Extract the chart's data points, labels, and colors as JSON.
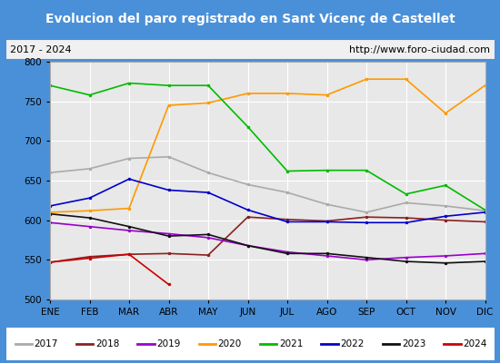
{
  "title": "Evolucion del paro registrado en Sant Vicenç de Castellet",
  "subtitle_left": "2017 - 2024",
  "subtitle_right": "http://www.foro-ciudad.com",
  "xlabel_ticks": [
    "ENE",
    "FEB",
    "MAR",
    "ABR",
    "MAY",
    "JUN",
    "JUL",
    "AGO",
    "SEP",
    "OCT",
    "NOV",
    "DIC"
  ],
  "ylim": [
    500,
    800
  ],
  "yticks": [
    500,
    550,
    600,
    650,
    700,
    750,
    800
  ],
  "title_bg": "#4a90d9",
  "title_color": "white",
  "subtitle_bg": "#f0f0f0",
  "plot_bg": "#e8e8e8",
  "grid_color": "white",
  "series": {
    "2017": {
      "color": "#aaaaaa",
      "data": [
        660,
        665,
        678,
        680,
        660,
        645,
        635,
        620,
        610,
        622,
        618,
        612
      ]
    },
    "2018": {
      "color": "#8b2020",
      "data": [
        547,
        554,
        557,
        558,
        556,
        604,
        601,
        599,
        604,
        603,
        600,
        598
      ]
    },
    "2019": {
      "color": "#9900cc",
      "data": [
        597,
        592,
        587,
        583,
        578,
        568,
        560,
        555,
        550,
        553,
        555,
        558
      ]
    },
    "2020": {
      "color": "#ff9900",
      "data": [
        610,
        612,
        615,
        745,
        748,
        760,
        760,
        758,
        778,
        778,
        735,
        770
      ]
    },
    "2021": {
      "color": "#00bb00",
      "data": [
        770,
        758,
        773,
        770,
        770,
        718,
        662,
        663,
        663,
        633,
        644,
        613
      ]
    },
    "2022": {
      "color": "#0000cc",
      "data": [
        618,
        628,
        652,
        638,
        635,
        613,
        598,
        598,
        597,
        597,
        605,
        610
      ]
    },
    "2023": {
      "color": "#111111",
      "data": [
        608,
        603,
        592,
        580,
        582,
        568,
        558,
        558,
        553,
        548,
        546,
        548
      ]
    },
    "2024": {
      "color": "#cc0000",
      "data": [
        547,
        552,
        557,
        519,
        null,
        null,
        null,
        null,
        null,
        null,
        null,
        null
      ]
    }
  }
}
